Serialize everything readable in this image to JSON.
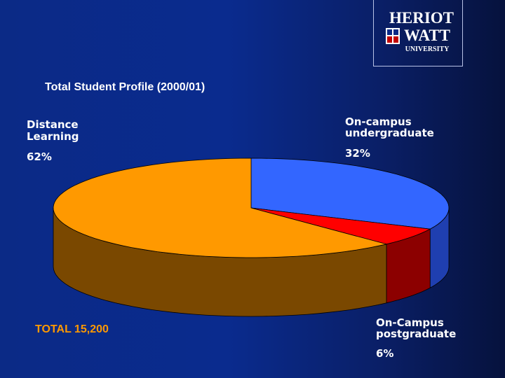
{
  "logo": {
    "line1": "HERIOT",
    "line2": "WATT",
    "line3": "UNIVERSITY"
  },
  "chart_data": {
    "type": "pie",
    "title": "Total Student Profile (2000/01)",
    "slices": [
      {
        "label_line1": "On-campus",
        "label_line2": "undergraduate",
        "value": 32,
        "value_text": "32%",
        "color": "#3366ff",
        "side_color": "#1f3fb0"
      },
      {
        "label_line1": "On-Campus",
        "label_line2": "postgraduate",
        "value": 6,
        "value_text": "6%",
        "color": "#ff0000",
        "side_color": "#8c0000"
      },
      {
        "label_line1": "Distance",
        "label_line2": "Learning",
        "value": 62,
        "value_text": "62%",
        "color": "#ff9900",
        "side_color": "#7a4800"
      }
    ],
    "total_text": "TOTAL 15,200",
    "three_d": true
  }
}
